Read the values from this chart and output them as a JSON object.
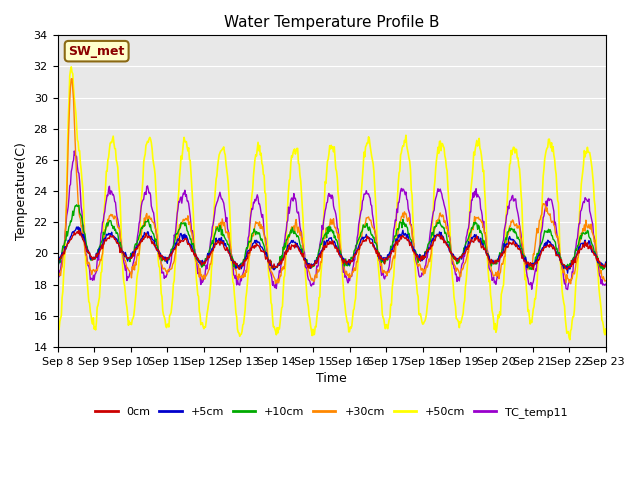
{
  "title": "Water Temperature Profile B",
  "xlabel": "Time",
  "ylabel": "Temperature(C)",
  "ylim": [
    14,
    34
  ],
  "yticks": [
    14,
    16,
    18,
    20,
    22,
    24,
    26,
    28,
    30,
    32,
    34
  ],
  "bg_color": "#e8e8e8",
  "plot_bg_color": "#e8e8e8",
  "grid_color": "white",
  "annotation_text": "SW_met",
  "annotation_bg": "#ffffcc",
  "annotation_fg": "#8b0000",
  "series": {
    "0cm": {
      "color": "#cc0000",
      "lw": 1.0
    },
    "+5cm": {
      "color": "#0000cc",
      "lw": 1.0
    },
    "+10cm": {
      "color": "#00aa00",
      "lw": 1.0
    },
    "+30cm": {
      "color": "#ff8800",
      "lw": 1.0
    },
    "+50cm": {
      "color": "#ffff00",
      "lw": 1.2
    },
    "TC_temp11": {
      "color": "#9900cc",
      "lw": 1.0
    }
  },
  "xtick_labels": [
    "Sep 8",
    "Sep 9",
    "Sep 10",
    "Sep 11",
    "Sep 12",
    "Sep 13",
    "Sep 14",
    "Sep 15",
    "Sep 16",
    "Sep 17",
    "Sep 18",
    "Sep 19",
    "Sep 20",
    "Sep 21",
    "Sep 22",
    "Sep 23"
  ],
  "n_points": 720,
  "days": 15
}
